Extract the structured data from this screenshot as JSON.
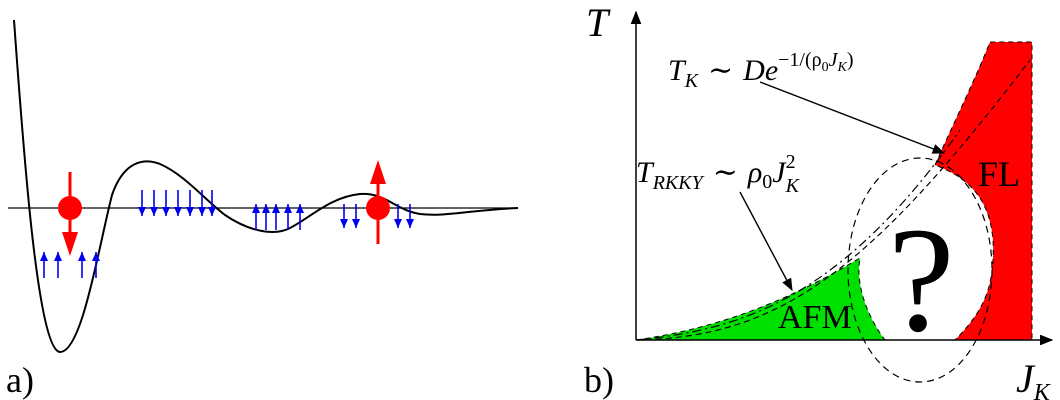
{
  "panel_a": {
    "label": "a)"
  },
  "panel_b": {
    "label": "b)",
    "x_axis_label": {
      "base": "J",
      "sub": "K"
    },
    "y_axis_label": "T",
    "kondo_formula": {
      "base": "T",
      "sub": "K",
      "rel": "∼",
      "D": "De",
      "exp": "−1/(ρ",
      "exp_sub0": "0",
      "exp_J": "J",
      "exp_subK": "K",
      "exp_close": ")"
    },
    "rkky_formula": {
      "base": "T",
      "sub": "RKKY",
      "rel": "∼",
      "rho": "ρ",
      "rho_sub": "0",
      "J": "J",
      "J_sup": "2",
      "J_sub": "K"
    },
    "region_afm": "AFM",
    "region_fl": "FL",
    "question_mark": "?",
    "colors": {
      "afm": "#00e000",
      "fl": "#ff0000",
      "spin_small": "#0000ee",
      "spin_big": "#ff0000"
    }
  }
}
